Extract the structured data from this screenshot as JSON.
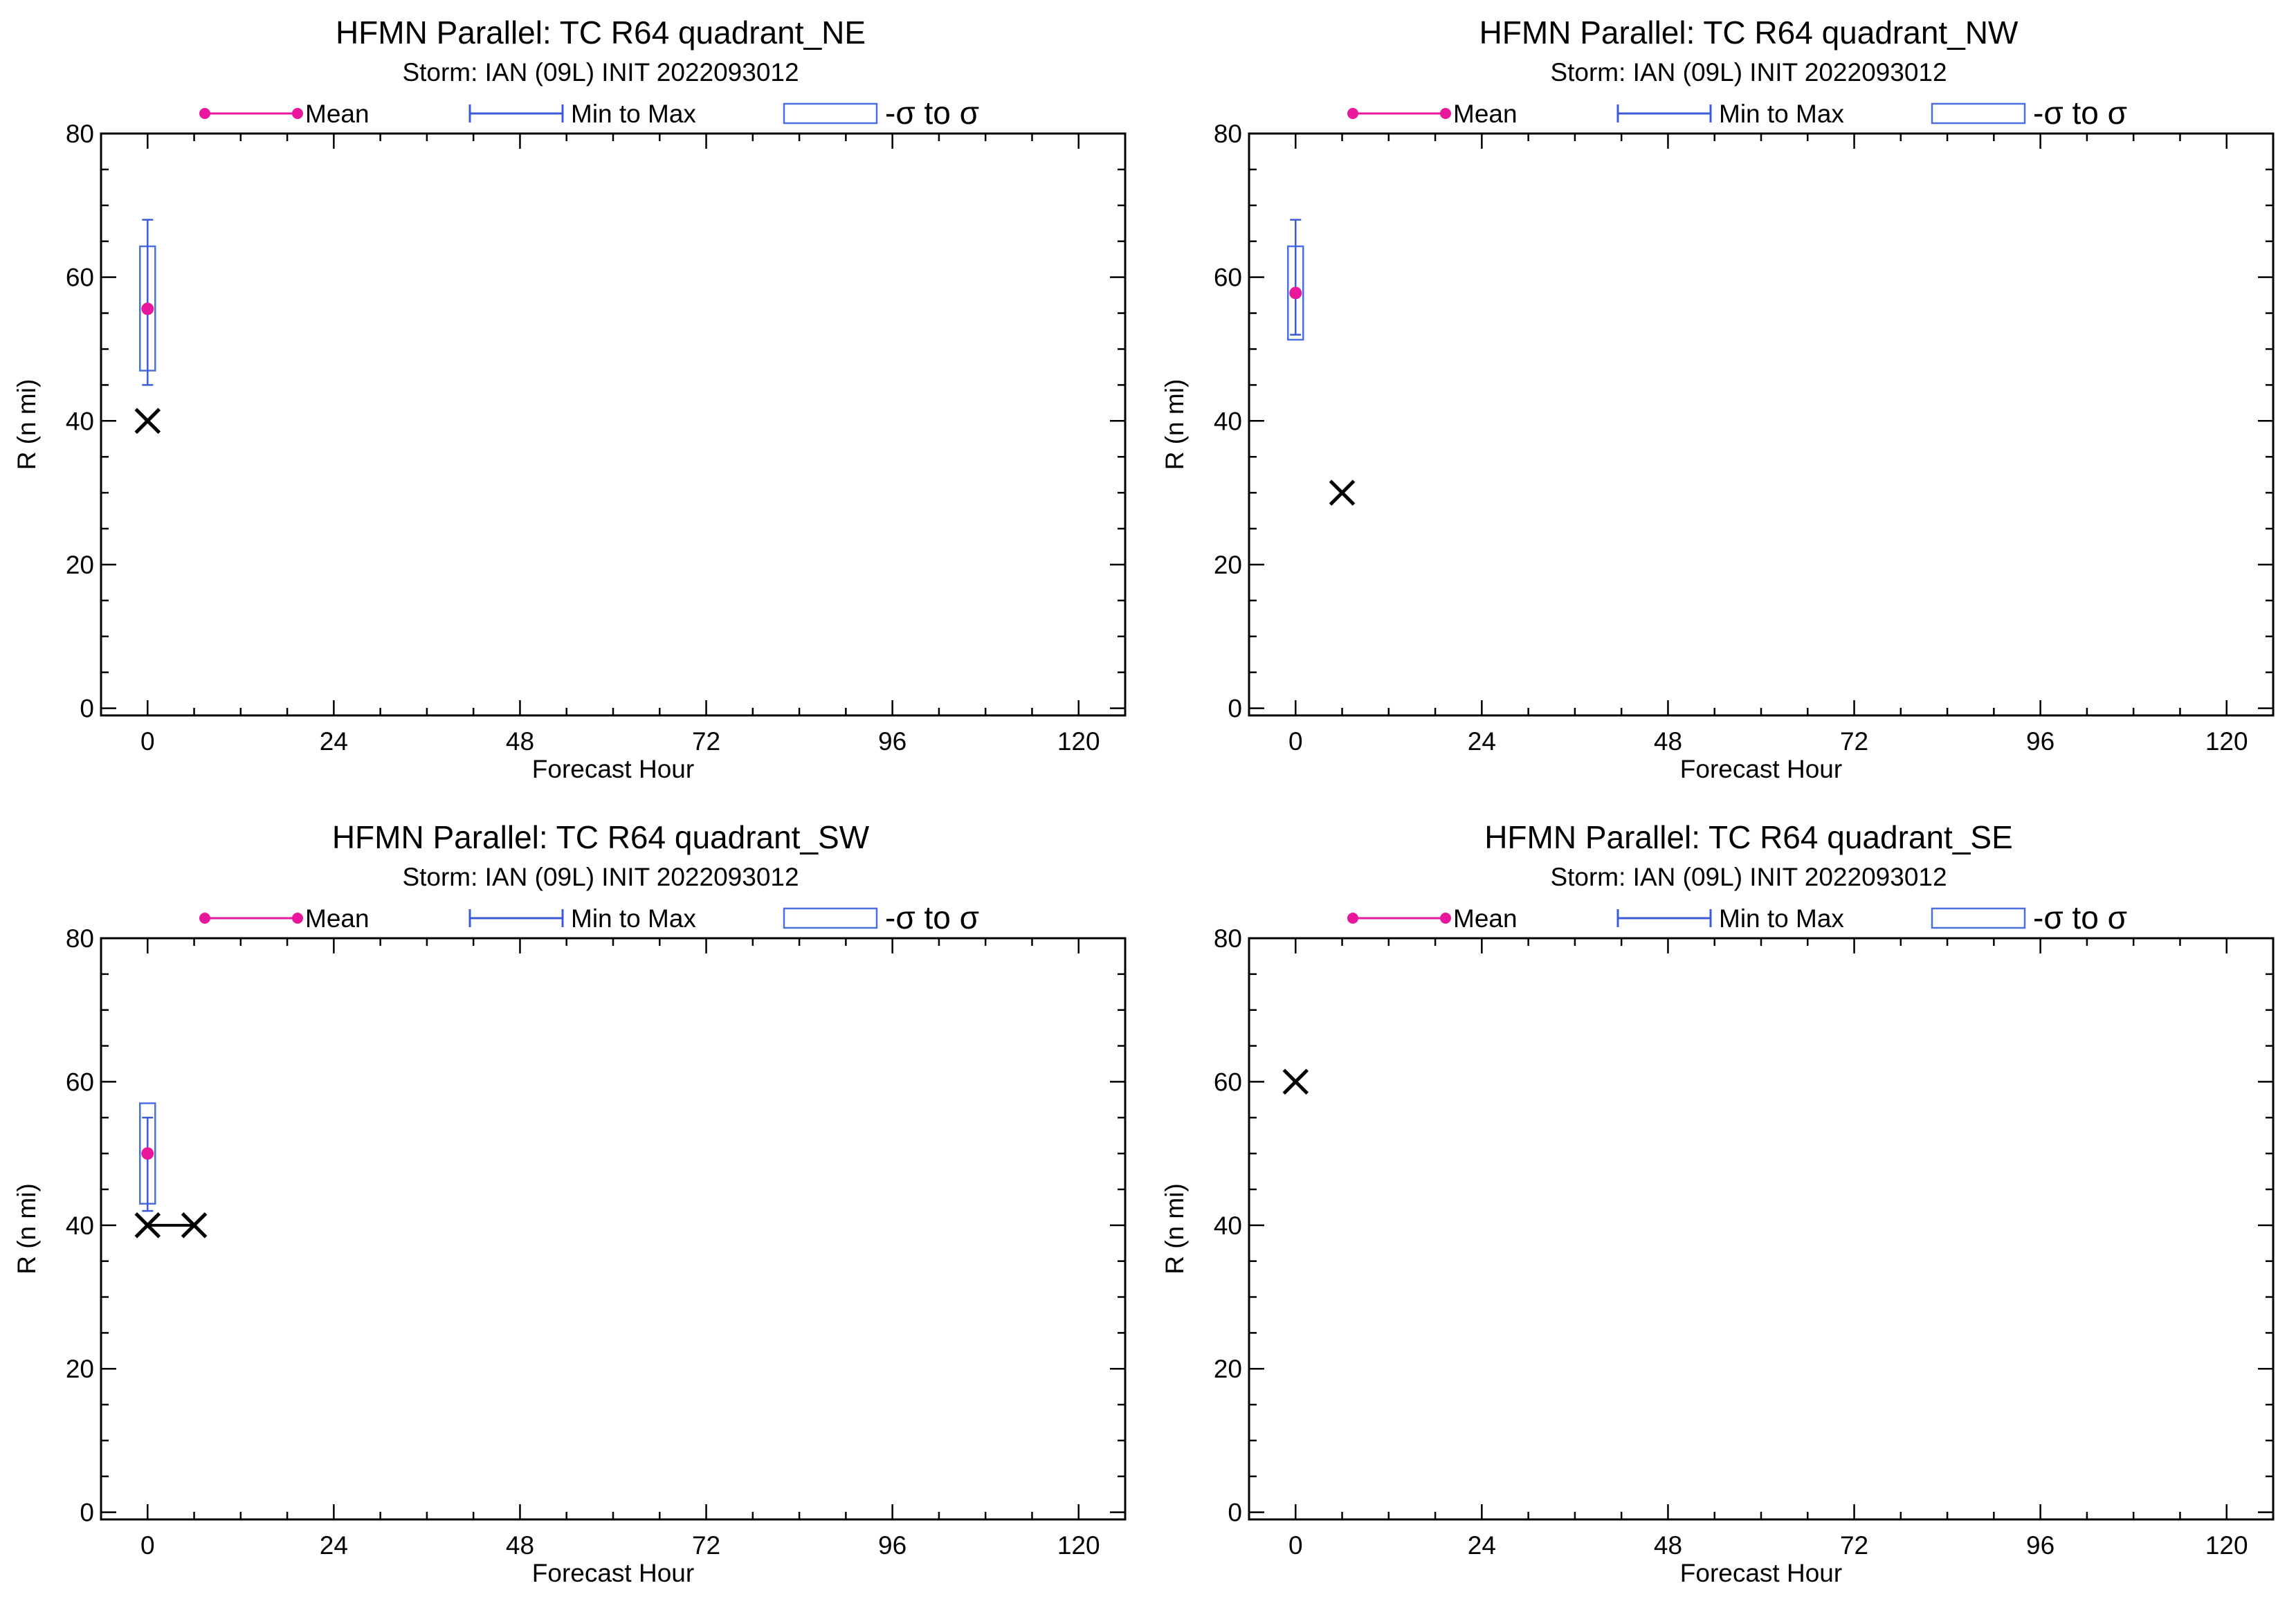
{
  "legend": {
    "mean_label": "Mean",
    "minmax_label": "Min to Max",
    "sigma_label": "-σ to σ"
  },
  "colors": {
    "mean": "#e8179c",
    "minmax": "#3b5bdb",
    "sigma_box": "#4a6fe0",
    "observed": "#000000",
    "axis": "#000000"
  },
  "chart_data": [
    {
      "type": "scatter",
      "title": "HFMN Parallel: TC  R64 quadrant_NE",
      "subtitle": "Storm: IAN (09L) INIT 2022093012",
      "xlabel": "Forecast Hour",
      "ylabel": "R (n mi)",
      "xlim": [
        -6,
        126
      ],
      "ylim": [
        -1,
        80
      ],
      "xticks": [
        0,
        24,
        48,
        72,
        96,
        120
      ],
      "xtick_labels": [
        "0",
        "24",
        "48",
        "72",
        "96",
        "120"
      ],
      "yticks": [
        0,
        20,
        40,
        60,
        80
      ],
      "ytick_labels": [
        "0",
        "20",
        "40",
        "60",
        "80"
      ],
      "grid": false,
      "legend_position": "top",
      "stats": [
        {
          "x": 0,
          "mean": 55.6,
          "min": 45,
          "max": 68,
          "sigma_low": 47,
          "sigma_high": 64.3
        }
      ],
      "observed": [
        {
          "x": 0,
          "y": 40
        }
      ]
    },
    {
      "type": "scatter",
      "title": "HFMN Parallel: TC  R64 quadrant_NW",
      "subtitle": "Storm: IAN (09L) INIT 2022093012",
      "xlabel": "Forecast Hour",
      "ylabel": "R (n mi)",
      "xlim": [
        -6,
        126
      ],
      "ylim": [
        -1,
        80
      ],
      "xticks": [
        0,
        24,
        48,
        72,
        96,
        120
      ],
      "xtick_labels": [
        "0",
        "24",
        "48",
        "72",
        "96",
        "120"
      ],
      "yticks": [
        0,
        20,
        40,
        60,
        80
      ],
      "ytick_labels": [
        "0",
        "20",
        "40",
        "60",
        "80"
      ],
      "grid": false,
      "legend_position": "top",
      "stats": [
        {
          "x": 0,
          "mean": 57.8,
          "min": 52,
          "max": 68,
          "sigma_low": 51.3,
          "sigma_high": 64.3
        }
      ],
      "observed": [
        {
          "x": 6,
          "y": 30
        }
      ]
    },
    {
      "type": "scatter",
      "title": "HFMN Parallel: TC  R64 quadrant_SW",
      "subtitle": "Storm: IAN (09L) INIT 2022093012",
      "xlabel": "Forecast Hour",
      "ylabel": "R (n mi)",
      "xlim": [
        -6,
        126
      ],
      "ylim": [
        -1,
        80
      ],
      "xticks": [
        0,
        24,
        48,
        72,
        96,
        120
      ],
      "xtick_labels": [
        "0",
        "24",
        "48",
        "72",
        "96",
        "120"
      ],
      "yticks": [
        0,
        20,
        40,
        60,
        80
      ],
      "ytick_labels": [
        "0",
        "20",
        "40",
        "60",
        "80"
      ],
      "grid": false,
      "legend_position": "top",
      "stats": [
        {
          "x": 0,
          "mean": 50,
          "min": 42,
          "max": 55,
          "sigma_low": 43,
          "sigma_high": 57
        }
      ],
      "observed": [
        {
          "x": 0,
          "y": 40
        },
        {
          "x": 6,
          "y": 40
        }
      ],
      "observed_connected": true
    },
    {
      "type": "scatter",
      "title": "HFMN Parallel: TC  R64 quadrant_SE",
      "subtitle": "Storm: IAN (09L) INIT 2022093012",
      "xlabel": "Forecast Hour",
      "ylabel": "R (n mi)",
      "xlim": [
        -6,
        126
      ],
      "ylim": [
        -1,
        80
      ],
      "xticks": [
        0,
        24,
        48,
        72,
        96,
        120
      ],
      "xtick_labels": [
        "0",
        "24",
        "48",
        "72",
        "96",
        "120"
      ],
      "yticks": [
        0,
        20,
        40,
        60,
        80
      ],
      "ytick_labels": [
        "0",
        "20",
        "40",
        "60",
        "80"
      ],
      "grid": false,
      "legend_position": "top",
      "stats": [],
      "observed": [
        {
          "x": 0,
          "y": 60
        }
      ]
    }
  ]
}
